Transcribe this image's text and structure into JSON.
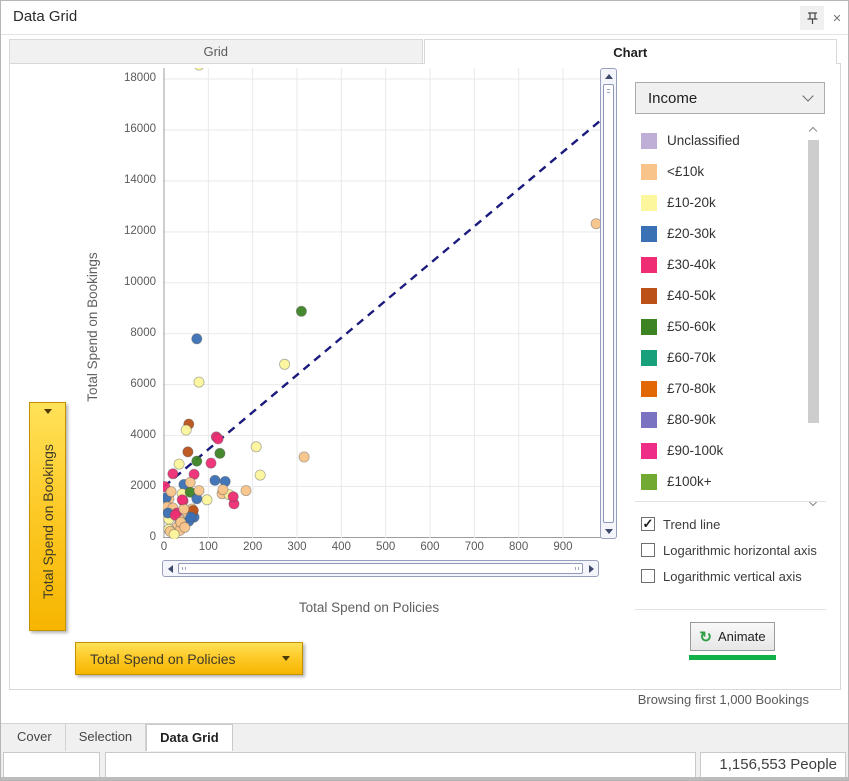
{
  "window": {
    "title": "Data Grid"
  },
  "icons": {
    "close": "✕",
    "animate_refresh": "↻",
    "checkmark": "✓"
  },
  "top_tabs": [
    {
      "label": "Grid",
      "active": false
    },
    {
      "label": "Chart",
      "active": true
    }
  ],
  "chart_data": {
    "type": "scatter",
    "xlabel": "Total Spend on Policies",
    "ylabel": "Total Spend on Bookings",
    "xlim": [
      0,
      990
    ],
    "ylim": [
      0,
      18450
    ],
    "x_ticks": [
      0,
      100,
      200,
      300,
      400,
      500,
      600,
      700,
      800,
      900
    ],
    "y_ticks": [
      0,
      2000,
      4000,
      6000,
      8000,
      10000,
      12000,
      14000,
      16000,
      18000
    ],
    "grid": true,
    "legend_title": "Income",
    "legend_position": "right",
    "categories": [
      {
        "label": "Unclassified",
        "color": "#bfaed6"
      },
      {
        "label": "<£10k",
        "color": "#f8c48a"
      },
      {
        "label": "£10-20k",
        "color": "#fcf69c"
      },
      {
        "label": "£20-30k",
        "color": "#3a70b4"
      },
      {
        "label": "£30-40k",
        "color": "#ee2d74"
      },
      {
        "label": "£40-50k",
        "color": "#bb5117"
      },
      {
        "label": "£50-60k",
        "color": "#3d8324"
      },
      {
        "label": "£60-70k",
        "color": "#18a07b"
      },
      {
        "label": "£70-80k",
        "color": "#e26806"
      },
      {
        "label": "£80-90k",
        "color": "#7a73c1"
      },
      {
        "label": "£90-100k",
        "color": "#ee2d88"
      },
      {
        "label": "£100k+",
        "color": "#72a932"
      }
    ],
    "points": [
      [
        79,
        18550,
        2
      ],
      [
        975,
        12320,
        1
      ],
      [
        310,
        8880,
        6
      ],
      [
        74,
        7800,
        3
      ],
      [
        272,
        6800,
        2
      ],
      [
        79,
        6100,
        2
      ],
      [
        56,
        4450,
        5
      ],
      [
        50,
        4220,
        2
      ],
      [
        118,
        3950,
        4
      ],
      [
        122,
        3870,
        4
      ],
      [
        54,
        3360,
        5
      ],
      [
        126,
        3300,
        6
      ],
      [
        208,
        3560,
        2
      ],
      [
        316,
        3160,
        1
      ],
      [
        74,
        3000,
        6
      ],
      [
        106,
        2920,
        4
      ],
      [
        34,
        2880,
        2
      ],
      [
        20,
        2500,
        4
      ],
      [
        68,
        2480,
        4
      ],
      [
        217,
        2450,
        2
      ],
      [
        45,
        2080,
        3
      ],
      [
        59,
        2160,
        1
      ],
      [
        115,
        2240,
        3
      ],
      [
        138,
        2200,
        3
      ],
      [
        2,
        2000,
        4
      ],
      [
        41,
        1720,
        2
      ],
      [
        59,
        1780,
        6
      ],
      [
        74,
        1520,
        3
      ],
      [
        79,
        1840,
        1
      ],
      [
        131,
        1720,
        1
      ],
      [
        147,
        1680,
        2
      ],
      [
        158,
        1320,
        4
      ],
      [
        185,
        1840,
        1
      ],
      [
        11,
        1520,
        1
      ],
      [
        43,
        1440,
        4
      ],
      [
        5,
        1560,
        3
      ],
      [
        16,
        1800,
        1
      ],
      [
        7,
        1200,
        1
      ],
      [
        20,
        1160,
        1
      ],
      [
        29,
        960,
        4
      ],
      [
        52,
        1000,
        1
      ],
      [
        68,
        800,
        3
      ],
      [
        63,
        1120,
        1
      ],
      [
        66,
        1060,
        5
      ],
      [
        11,
        720,
        2
      ],
      [
        36,
        680,
        1
      ],
      [
        56,
        640,
        3
      ],
      [
        29,
        400,
        1
      ],
      [
        11,
        320,
        2
      ],
      [
        36,
        280,
        1
      ],
      [
        14,
        240,
        1
      ],
      [
        23,
        120,
        2
      ],
      [
        9,
        960,
        3
      ],
      [
        25,
        880,
        4
      ],
      [
        45,
        1120,
        1
      ],
      [
        38,
        600,
        1
      ],
      [
        47,
        400,
        1
      ],
      [
        61,
        800,
        3
      ],
      [
        156,
        1600,
        4
      ],
      [
        133,
        1880,
        1
      ],
      [
        97,
        1480,
        2
      ],
      [
        41,
        1480,
        4
      ]
    ],
    "trend_line": {
      "x1": 0,
      "y1": 2000,
      "x2": 990,
      "y2": 16450,
      "color": "#1b1b7e",
      "style": "dashed"
    }
  },
  "axis_buttons": {
    "y": "Total Spend on Bookings",
    "x": "Total Spend on Policies"
  },
  "sidebar": {
    "color_by": "Income",
    "checkboxes": [
      {
        "label": "Trend line",
        "checked": true
      },
      {
        "label": "Logarithmic horizontal axis",
        "checked": false
      },
      {
        "label": "Logarithmic vertical axis",
        "checked": false
      }
    ],
    "animate_label": "Animate",
    "accent_green": "#12b048"
  },
  "footer": {
    "browsing_note": "Browsing first 1,000 Bookings"
  },
  "bottom_tabs": [
    {
      "label": "Cover",
      "active": false
    },
    {
      "label": "Selection",
      "active": false
    },
    {
      "label": "Data Grid",
      "active": true
    }
  ],
  "status_bar": {
    "people_count": "1,156,553 People"
  }
}
